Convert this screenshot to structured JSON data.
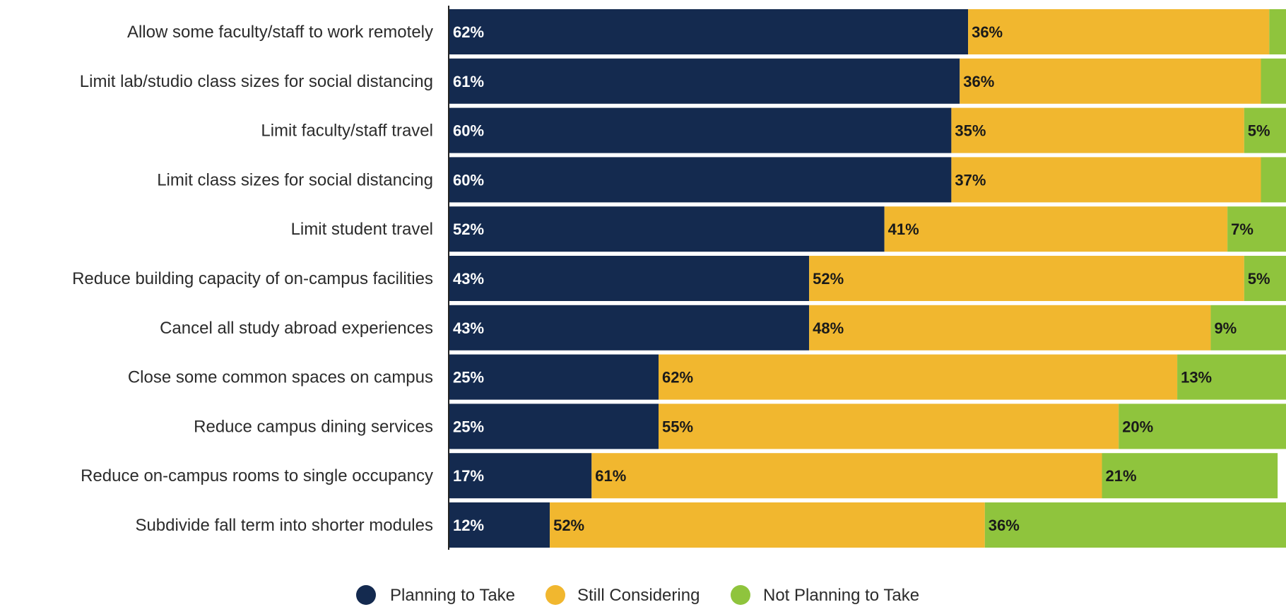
{
  "chart_data": {
    "type": "bar",
    "orientation": "horizontal",
    "stacked": true,
    "percent": true,
    "title": "",
    "xlabel": "",
    "ylabel": "",
    "xlim": [
      0,
      100
    ],
    "legend_position": "bottom-center",
    "grid": false,
    "categories": [
      "Allow some faculty/staff to work remotely",
      "Limit lab/studio class sizes for social distancing",
      "Limit faculty/staff travel",
      "Limit class sizes for social distancing",
      "Limit student travel",
      "Reduce building capacity of on-campus facilities",
      "Cancel all study abroad experiences",
      "Close some common spaces on campus",
      "Reduce campus dining services",
      "Reduce on-campus rooms to single occupancy",
      "Subdivide fall term into shorter modules"
    ],
    "series": [
      {
        "name": "Planning to Take",
        "color": "#142a4f",
        "label_color": "#ffffff",
        "values": [
          62,
          61,
          60,
          60,
          52,
          43,
          43,
          25,
          25,
          17,
          12
        ],
        "labels": [
          "62%",
          "61%",
          "60%",
          "60%",
          "52%",
          "43%",
          "43%",
          "25%",
          "25%",
          "17%",
          "12%"
        ]
      },
      {
        "name": "Still Considering",
        "color": "#f1b72f",
        "label_color": "#1a1a1a",
        "values": [
          36,
          36,
          35,
          37,
          41,
          52,
          48,
          62,
          55,
          61,
          52
        ],
        "labels": [
          "36%",
          "36%",
          "35%",
          "37%",
          "41%",
          "52%",
          "48%",
          "62%",
          "55%",
          "61%",
          "52%"
        ]
      },
      {
        "name": "Not Planning to Take",
        "color": "#8fc43d",
        "label_color": "#1a1a1a",
        "values": [
          2,
          3,
          5,
          3,
          7,
          5,
          9,
          13,
          20,
          21,
          36
        ],
        "labels": [
          "",
          "",
          "5%",
          "",
          "7%",
          "5%",
          "9%",
          "13%",
          "20%",
          "21%",
          "36%"
        ]
      }
    ]
  }
}
